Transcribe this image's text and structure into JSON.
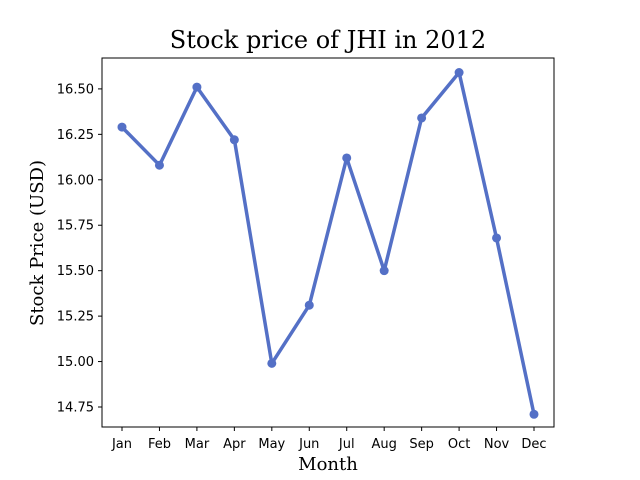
{
  "chart_data": {
    "type": "line",
    "title": "Stock price of JHI in 2012",
    "xlabel": "Month",
    "ylabel": "Stock Price (USD)",
    "categories": [
      "Jan",
      "Feb",
      "Mar",
      "Apr",
      "May",
      "Jun",
      "Jul",
      "Aug",
      "Sep",
      "Oct",
      "Nov",
      "Dec"
    ],
    "series": [
      {
        "values": [
          16.29,
          16.08,
          16.51,
          16.22,
          14.99,
          15.31,
          16.12,
          15.5,
          16.34,
          16.59,
          15.68,
          14.71
        ],
        "color": "#5470c6"
      }
    ],
    "ylim": [
      14.64,
      16.67
    ],
    "yticks": [
      14.75,
      15.0,
      15.25,
      15.5,
      15.75,
      16.0,
      16.25,
      16.5
    ],
    "ytick_labels": [
      "14.75",
      "15.00",
      "15.25",
      "15.50",
      "15.75",
      "16.00",
      "16.25",
      "16.50"
    ],
    "grid": false,
    "legend": "none"
  }
}
